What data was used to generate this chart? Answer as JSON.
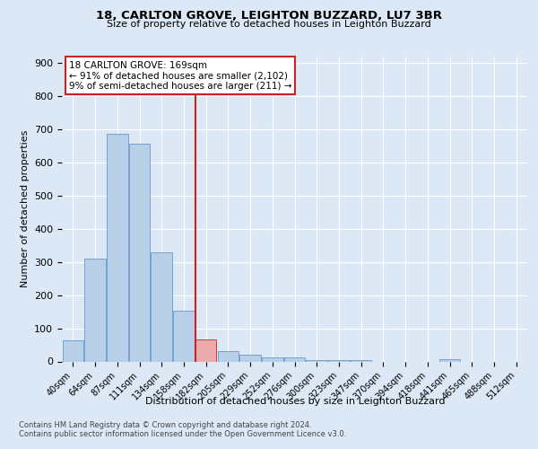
{
  "title1": "18, CARLTON GROVE, LEIGHTON BUZZARD, LU7 3BR",
  "title2": "Size of property relative to detached houses in Leighton Buzzard",
  "xlabel": "Distribution of detached houses by size in Leighton Buzzard",
  "ylabel": "Number of detached properties",
  "bin_labels": [
    "40sqm",
    "64sqm",
    "87sqm",
    "111sqm",
    "134sqm",
    "158sqm",
    "182sqm",
    "205sqm",
    "229sqm",
    "252sqm",
    "276sqm",
    "300sqm",
    "323sqm",
    "347sqm",
    "370sqm",
    "394sqm",
    "418sqm",
    "441sqm",
    "465sqm",
    "488sqm",
    "512sqm"
  ],
  "bar_heights": [
    63,
    310,
    685,
    655,
    330,
    152,
    65,
    30,
    20,
    12,
    12,
    5,
    5,
    5,
    0,
    0,
    0,
    8,
    0,
    0,
    0
  ],
  "bar_color": "#b8cfe8",
  "bar_edge_color": "#6699cc",
  "highlight_bar_index": 6,
  "highlight_bar_color": "#e8aaaa",
  "highlight_bar_edge_color": "#cc2222",
  "vline_color": "#cc2222",
  "annotation_title": "18 CARLTON GROVE: 169sqm",
  "annotation_line1": "← 91% of detached houses are smaller (2,102)",
  "annotation_line2": "9% of semi-detached houses are larger (211) →",
  "annotation_box_color": "#ffffff",
  "annotation_box_edge": "#cc2222",
  "ylim": [
    0,
    920
  ],
  "yticks": [
    0,
    100,
    200,
    300,
    400,
    500,
    600,
    700,
    800,
    900
  ],
  "footer1": "Contains HM Land Registry data © Crown copyright and database right 2024.",
  "footer2": "Contains public sector information licensed under the Open Government Licence v3.0.",
  "bg_color": "#dce8f5",
  "plot_bg_color": "#dce8f5"
}
